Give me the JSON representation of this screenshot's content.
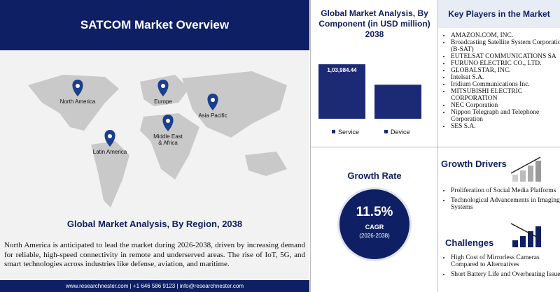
{
  "header": {
    "title": "SATCOM Market Overview"
  },
  "map": {
    "regions": [
      "North America",
      "Europe",
      "Asia Pacific",
      "Middle East & Africa",
      "Latin America"
    ]
  },
  "region_section": {
    "title": "Global Market Analysis, By Region, 2038",
    "text": "North America is anticipated to lead the market during 2026-2038, driven by increasing demand for reliable, high-speed connectivity in remote and underserved areas. The rise of IoT, 5G, and smart technologies across industries like defense, aviation, and maritime."
  },
  "footer": {
    "contact": "www.researchnester.com | +1 646 586 9123 | info@researchnester.com"
  },
  "chart_data": {
    "type": "bar",
    "title": "Global Market Analysis, By Component (in USD million) 2038",
    "categories": [
      "Service",
      "Device"
    ],
    "values": [
      103984.44,
      65000
    ],
    "value_labels": [
      "1,03,984.44",
      null
    ],
    "color": "#1c2a75"
  },
  "growth_rate": {
    "title": "Growth Rate",
    "value": "11.5%",
    "label": "CAGR",
    "period": "(2026-2038)"
  },
  "key_players": {
    "title": "Key Players in the Market",
    "items": [
      "AMAZON.COM, INC.",
      "Broadcasting Satellite System Corporation (B-SAT)",
      "EUTELSAT COMMUNICATIONS SA",
      "FURUNO ELECTRIC CO., LTD.",
      "GLOBALSTAR, INC.",
      "Intelsat S.A.",
      "Iridium Communications Inc.",
      "MITSUBISHI ELECTRIC CORPORATION",
      "NEC Corporation",
      "Nippon Telegraph and Telephone Corporation",
      "SES S.A."
    ]
  },
  "growth_drivers": {
    "title": "Growth Drivers",
    "items": [
      "Proliferation of Social Media Platforms",
      "Technological Advancements in Imaging Systems"
    ]
  },
  "challenges": {
    "title": "Challenges",
    "items": [
      "High Cost of Mirrorless Cameras Compared to Alternatives",
      "Short Battery Life and Overheating Issues"
    ]
  }
}
